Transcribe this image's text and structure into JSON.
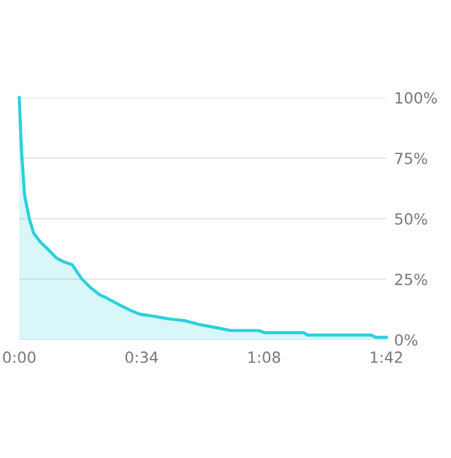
{
  "chart_data": {
    "type": "area",
    "color": "#2ccfdc",
    "x": [
      0,
      0.6,
      1.5,
      2.8,
      4,
      5.9,
      7.8,
      10.3,
      12.2,
      14.7,
      17.3,
      19.8,
      22.3,
      24.2,
      27.3,
      31.1,
      33.6,
      37.4,
      41.2,
      46.2,
      50,
      55,
      58.8,
      66.4,
      68.3,
      79,
      80.2,
      97.8,
      99,
      102
    ],
    "values": [
      100,
      78.5,
      59.5,
      50,
      44,
      40.3,
      37.6,
      33.8,
      32.3,
      31,
      25.3,
      21.5,
      18.6,
      17.3,
      14.8,
      12,
      10.5,
      9.7,
      8.7,
      7.8,
      6.3,
      4.9,
      3.8,
      3.8,
      2.9,
      2.9,
      1.9,
      1.9,
      1,
      1
    ],
    "xlim": [
      0,
      102
    ],
    "xticks": [
      {
        "value": 0,
        "label": "0:00"
      },
      {
        "value": 34,
        "label": "0:34"
      },
      {
        "value": 68,
        "label": "1:08"
      },
      {
        "value": 102,
        "label": "1:42"
      }
    ],
    "ylim": [
      0,
      100
    ],
    "yticks": [
      {
        "value": 0,
        "label": "0%"
      },
      {
        "value": 25,
        "label": "25%"
      },
      {
        "value": 50,
        "label": "50%"
      },
      {
        "value": 75,
        "label": "75%"
      },
      {
        "value": 100,
        "label": "100%"
      }
    ],
    "grid": "y",
    "legend": false
  }
}
